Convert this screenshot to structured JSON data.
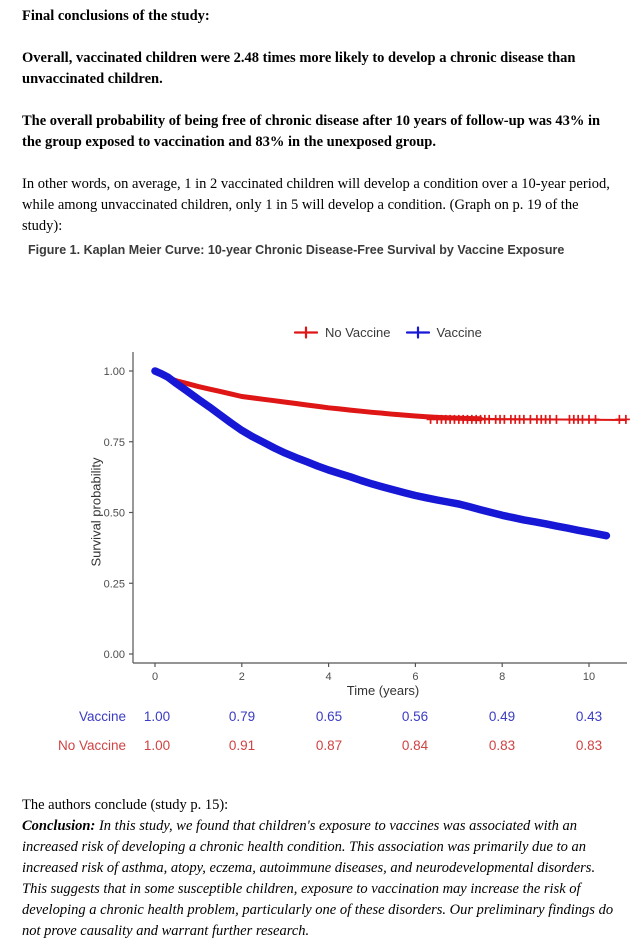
{
  "intro": {
    "heading": "Final conclusions of the study:",
    "para1": "Overall, vaccinated children were 2.48 times more likely to develop a chronic disease than unvaccinated children.",
    "para2": "The overall probability of being free of chronic disease after 10 years of follow-up was 43% in the group exposed to vaccination and 83% in the unexposed group.",
    "para3": "In other words, on average, 1 in 2 vaccinated children will develop a condition over a 10-year period, while among unvaccinated children, only 1 in 5 will develop a condition. (Graph on p. 19 of the study):"
  },
  "chart_data": {
    "type": "line",
    "subtype": "kaplan-meier-step",
    "title": "Figure 1. Kaplan Meier Curve: 10-year Chronic Disease-Free Survival by Vaccine Exposure",
    "xlabel": "Time (years)",
    "ylabel": "Survival probability",
    "xlim": [
      0,
      10.9
    ],
    "ylim": [
      0,
      1.0
    ],
    "x_ticks": [
      "0",
      "2",
      "4",
      "6",
      "8",
      "10"
    ],
    "x_tick_values": [
      0,
      2,
      4,
      6,
      8,
      10
    ],
    "y_ticks": [
      "0.00",
      "0.25",
      "0.50",
      "0.75",
      "1.00"
    ],
    "y_tick_values": [
      0,
      0.25,
      0.5,
      0.75,
      1.0
    ],
    "grid": "off",
    "legend_position": "top-center",
    "series": [
      {
        "name": "No Vaccine",
        "color": "#df1616",
        "line_width": 5,
        "thin_tail_from": 7.5,
        "thin_tail_width": 2,
        "points": [
          [
            0,
            1.0
          ],
          [
            0.1,
            0.99
          ],
          [
            0.25,
            0.978
          ],
          [
            0.5,
            0.965
          ],
          [
            0.75,
            0.955
          ],
          [
            1,
            0.945
          ],
          [
            1.25,
            0.936
          ],
          [
            1.5,
            0.928
          ],
          [
            1.75,
            0.919
          ],
          [
            2,
            0.91
          ],
          [
            2.25,
            0.905
          ],
          [
            2.5,
            0.9
          ],
          [
            2.75,
            0.895
          ],
          [
            3,
            0.89
          ],
          [
            3.25,
            0.885
          ],
          [
            3.5,
            0.88
          ],
          [
            3.75,
            0.875
          ],
          [
            4,
            0.87
          ],
          [
            4.25,
            0.866
          ],
          [
            4.5,
            0.862
          ],
          [
            4.75,
            0.858
          ],
          [
            5,
            0.854
          ],
          [
            5.25,
            0.851
          ],
          [
            5.5,
            0.847
          ],
          [
            5.75,
            0.844
          ],
          [
            6,
            0.841
          ],
          [
            6.25,
            0.838
          ],
          [
            6.5,
            0.836
          ],
          [
            7,
            0.833
          ],
          [
            7.5,
            0.831
          ],
          [
            8,
            0.83
          ],
          [
            9,
            0.829
          ],
          [
            10,
            0.828
          ],
          [
            10.85,
            0.827
          ]
        ],
        "censor_level": 0.829,
        "censor_times": [
          6.35,
          6.5,
          6.6,
          6.7,
          6.8,
          6.9,
          7.0,
          7.1,
          7.2,
          7.3,
          7.4,
          7.5,
          7.6,
          7.7,
          7.85,
          7.95,
          8.05,
          8.2,
          8.3,
          8.4,
          8.5,
          8.65,
          8.8,
          8.9,
          9.0,
          9.1,
          9.25,
          9.55,
          9.65,
          9.75,
          9.85,
          10.0,
          10.15,
          10.7,
          10.85
        ]
      },
      {
        "name": "Vaccine",
        "color": "#1717d6",
        "line_width": 7.5,
        "points": [
          [
            0,
            1.0
          ],
          [
            0.15,
            0.99
          ],
          [
            0.3,
            0.978
          ],
          [
            0.5,
            0.955
          ],
          [
            0.75,
            0.928
          ],
          [
            1,
            0.9
          ],
          [
            1.25,
            0.873
          ],
          [
            1.5,
            0.845
          ],
          [
            1.75,
            0.817
          ],
          [
            2,
            0.79
          ],
          [
            2.25,
            0.768
          ],
          [
            2.5,
            0.748
          ],
          [
            2.75,
            0.728
          ],
          [
            3,
            0.71
          ],
          [
            3.25,
            0.694
          ],
          [
            3.5,
            0.679
          ],
          [
            3.75,
            0.664
          ],
          [
            4,
            0.65
          ],
          [
            4.25,
            0.638
          ],
          [
            4.5,
            0.626
          ],
          [
            4.75,
            0.613
          ],
          [
            5,
            0.601
          ],
          [
            5.25,
            0.59
          ],
          [
            5.5,
            0.58
          ],
          [
            5.75,
            0.57
          ],
          [
            6,
            0.56
          ],
          [
            6.25,
            0.552
          ],
          [
            6.5,
            0.544
          ],
          [
            6.75,
            0.537
          ],
          [
            7,
            0.53
          ],
          [
            7.25,
            0.52
          ],
          [
            7.5,
            0.51
          ],
          [
            7.75,
            0.5
          ],
          [
            8,
            0.49
          ],
          [
            8.25,
            0.482
          ],
          [
            8.5,
            0.474
          ],
          [
            8.75,
            0.467
          ],
          [
            9,
            0.46
          ],
          [
            9.25,
            0.452
          ],
          [
            9.5,
            0.445
          ],
          [
            9.75,
            0.437
          ],
          [
            10,
            0.43
          ],
          [
            10.4,
            0.418
          ]
        ],
        "censor_times": []
      }
    ],
    "risk_table": {
      "times": [
        0,
        2,
        4,
        6,
        8,
        10
      ],
      "rows": [
        {
          "label": "Vaccine",
          "color": "#3b3bc4",
          "values": [
            "1.00",
            "0.79",
            "0.65",
            "0.56",
            "0.49",
            "0.43"
          ]
        },
        {
          "label": "No Vaccine",
          "color": "#d04343",
          "values": [
            "1.00",
            "0.91",
            "0.87",
            "0.84",
            "0.83",
            "0.83"
          ]
        }
      ]
    }
  },
  "footer": {
    "lead": "The authors conclude (study p. 15):",
    "conclusion_label": "Conclusion:",
    "conclusion_text": " In this study, we found that children's exposure to vaccines was associated with an increased risk of developing a chronic health condition. This association was primarily due to an increased risk of asthma, atopy, eczema, autoimmune diseases, and neurodevelopmental disorders. This suggests that in some susceptible children, exposure to vaccination may increase the risk of developing a chronic health problem, particularly one of these disorders. Our preliminary findings do not prove causality and warrant further research."
  }
}
